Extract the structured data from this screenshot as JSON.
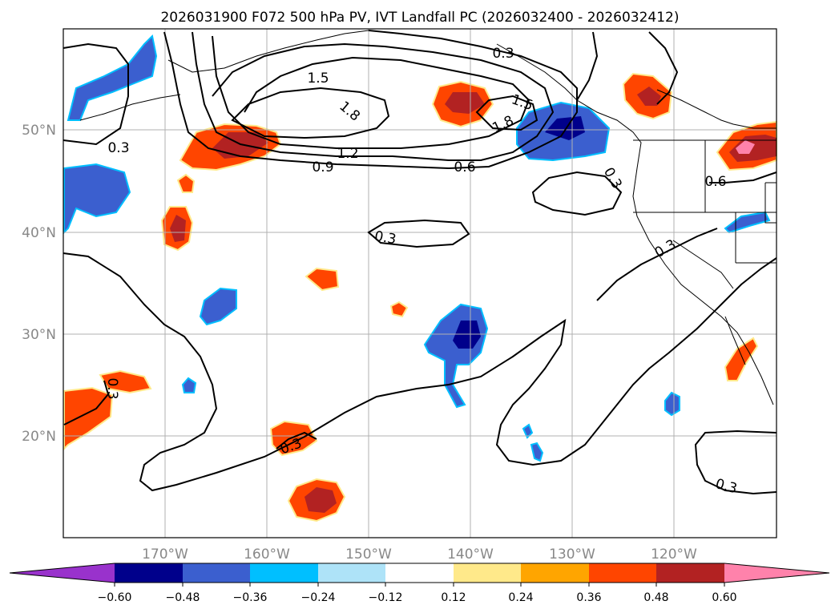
{
  "figure": {
    "title": "2026031900 F072 500 hPa PV, IVT Landfall PC (2026032400 - 2026032412)"
  },
  "map": {
    "lon_labels": [
      "170°W",
      "160°W",
      "150°W",
      "140°W",
      "130°W",
      "120°W"
    ],
    "lat_labels": [
      "50°N",
      "40°N",
      "30°N",
      "20°N"
    ],
    "contour_labels": [
      "0.3",
      "1.5",
      "1.8",
      "1.2",
      "0.9",
      "0.3",
      "1.5",
      "1.8",
      "0.6",
      "0.3",
      "0.3",
      "0.6",
      "0.3",
      "0.3",
      "0.3",
      "0.3",
      "0.3"
    ],
    "colors": {
      "neg_very": "#9932cc",
      "neg_060": "#00008b",
      "neg_048": "#3b5fcf",
      "neg_036": "#00bfff",
      "neg_024": "#aee3f8",
      "neg_012": "#ffffff",
      "pos_012": "#ffe98a",
      "pos_024": "#ffa500",
      "pos_036": "#ff4500",
      "pos_048": "#b22222",
      "pos_060": "#ff82ab"
    }
  },
  "colorbar": {
    "tick_labels": [
      "−0.60",
      "−0.48",
      "−0.36",
      "−0.24",
      "−0.12",
      "0.12",
      "0.24",
      "0.36",
      "0.48",
      "0.60"
    ],
    "colors": [
      "#9932cc",
      "#00008b",
      "#3b5fcf",
      "#00bfff",
      "#aee3f8",
      "#ffffff",
      "#ffe98a",
      "#ffa500",
      "#ff4500",
      "#b22222",
      "#ff82ab"
    ]
  }
}
